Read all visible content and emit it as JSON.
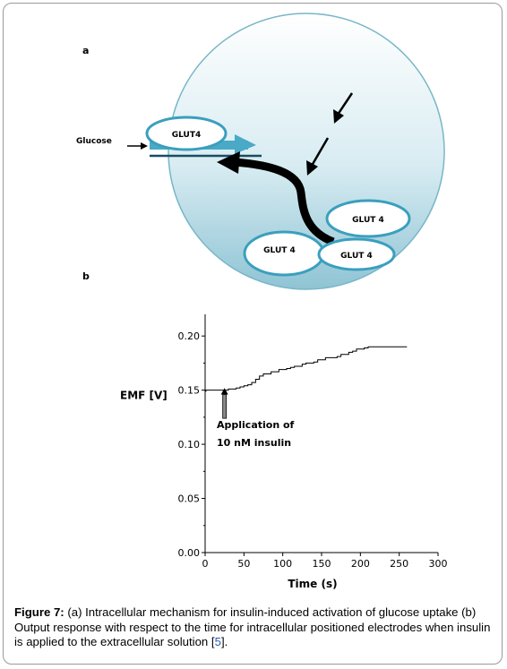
{
  "panel_a": {
    "label": "a",
    "glucose_label": "Glucose",
    "transporters": [
      "GLUT4",
      "GLUT 4",
      "GLUT 4",
      "GLUT 4"
    ]
  },
  "panel_b": {
    "label": "b"
  },
  "chart_data": {
    "type": "line",
    "title": "",
    "xlabel": "Time (s)",
    "ylabel": "EMF [V]",
    "xlim": [
      0,
      300
    ],
    "ylim": [
      0.0,
      0.22
    ],
    "xticks": [
      0,
      50,
      100,
      150,
      200,
      250,
      300
    ],
    "yticks": [
      0.0,
      0.05,
      0.1,
      0.15,
      0.2
    ],
    "ytick_labels": [
      "0.00",
      "0.05",
      "0.10",
      "0.15",
      "0.20"
    ],
    "grid": false,
    "legend": "none",
    "annotation": {
      "line1": "Application of",
      "line2": "10 nM insulin",
      "x": 25
    },
    "series": [
      {
        "x": [
          0,
          0,
          1,
          10,
          20,
          25,
          30,
          35,
          40,
          45,
          50,
          55,
          60,
          65,
          70,
          75,
          80,
          85,
          90,
          95,
          100,
          105,
          110,
          115,
          120,
          125,
          130,
          135,
          140,
          145,
          150,
          155,
          160,
          165,
          170,
          175,
          180,
          185,
          190,
          195,
          200,
          205,
          210,
          220,
          230,
          240,
          250,
          260
        ],
        "y": [
          0.0,
          0.149,
          0.15,
          0.15,
          0.15,
          0.15,
          0.151,
          0.151,
          0.152,
          0.153,
          0.154,
          0.155,
          0.157,
          0.16,
          0.163,
          0.165,
          0.165,
          0.167,
          0.167,
          0.169,
          0.169,
          0.17,
          0.171,
          0.172,
          0.172,
          0.174,
          0.175,
          0.175,
          0.176,
          0.178,
          0.178,
          0.18,
          0.18,
          0.18,
          0.181,
          0.183,
          0.183,
          0.185,
          0.186,
          0.188,
          0.188,
          0.189,
          0.19,
          0.19,
          0.19,
          0.19,
          0.19,
          0.19
        ]
      }
    ]
  },
  "caption": {
    "lead": "Figure 7:",
    "text": " (a) Intracellular mechanism for insulin-induced activation of glucose uptake (b) Output response with respect to the time for intracellular positioned electrodes when insulin is applied to the extracellular solution [",
    "ref": "5",
    "end": "]."
  },
  "colors": {
    "membrane_stroke": "#78b6c8",
    "cell_top": "#ffffff",
    "cell_bottom": "#8fc4d4",
    "transporter_stroke": "#3a9fbe",
    "caption_ref": "#2a5db0"
  }
}
